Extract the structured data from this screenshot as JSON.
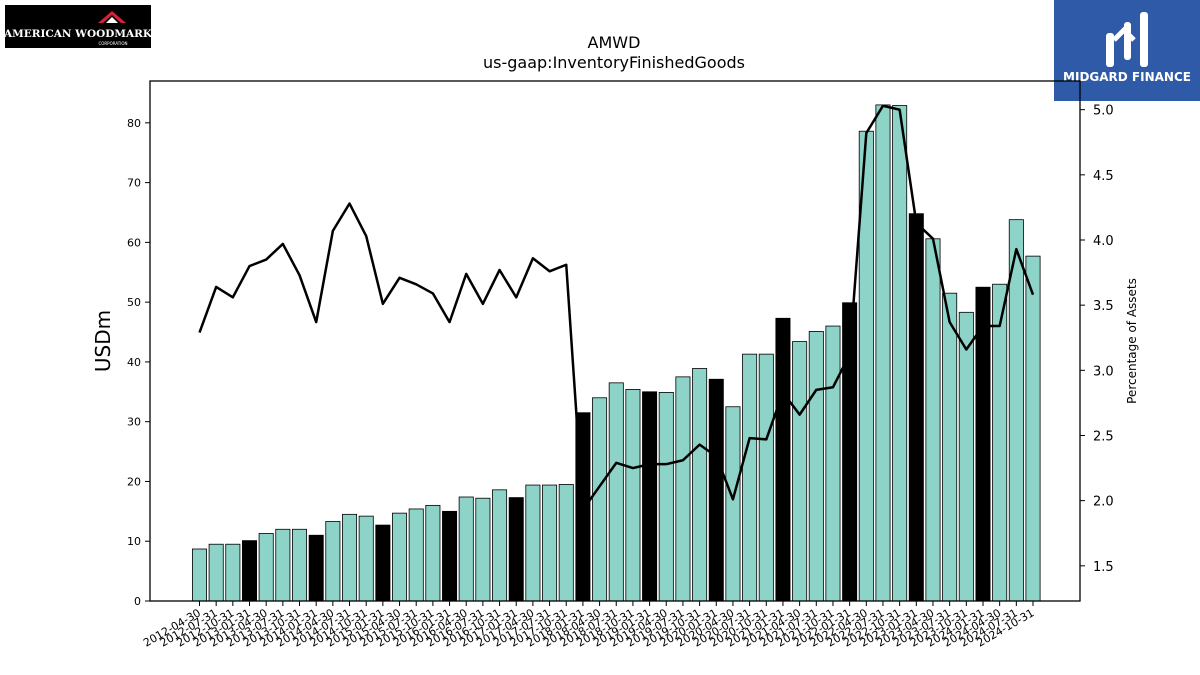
{
  "brand": {
    "left_logo_text": "AMERICAN WOODMARK",
    "left_logo_subtext": "CORPORATION",
    "right_logo_text": "MIDGARD FINANCE",
    "right_logo_color": "#2f5aa8"
  },
  "chart_data": {
    "type": "bar",
    "title": "AMWD",
    "subtitle": "us-gaap:InventoryFinishedGoods",
    "ylabel": "USDm",
    "y2label": "Percentage of Assets",
    "ylim": [
      0,
      87
    ],
    "y2lim": [
      1.23,
      5.22
    ],
    "yticks": [
      0,
      10,
      20,
      30,
      40,
      50,
      60,
      70,
      80
    ],
    "y2ticks": [
      1.5,
      2.0,
      2.5,
      3.0,
      3.5,
      4.0,
      4.5,
      5.0
    ],
    "bar_color": "#8dd3c7",
    "highlight_color": "#000000",
    "line_color": "#000000",
    "categories": [
      "2012-04-30",
      "2012-07-31",
      "2012-10-31",
      "2013-01-31",
      "2013-04-30",
      "2013-07-31",
      "2013-10-31",
      "2014-01-31",
      "2014-04-30",
      "2014-07-31",
      "2014-10-31",
      "2015-01-31",
      "2015-04-30",
      "2015-07-31",
      "2015-10-31",
      "2016-01-31",
      "2016-04-30",
      "2016-07-31",
      "2016-10-31",
      "2017-01-31",
      "2017-04-30",
      "2017-07-31",
      "2017-10-31",
      "2018-01-31",
      "2018-04-30",
      "2018-07-31",
      "2018-10-31",
      "2019-01-31",
      "2019-04-30",
      "2019-07-31",
      "2019-10-31",
      "2020-01-31",
      "2020-04-30",
      "2020-07-31",
      "2020-10-31",
      "2021-01-31",
      "2021-04-30",
      "2021-07-31",
      "2021-10-31",
      "2022-01-31",
      "2022-04-30",
      "2022-07-31",
      "2022-10-31",
      "2023-01-31",
      "2023-04-30",
      "2023-07-31",
      "2023-10-31",
      "2024-01-31",
      "2024-04-30",
      "2024-07-31",
      "2024-10-31"
    ],
    "series": [
      {
        "values": [
          8.7,
          9.5,
          9.5,
          10.1,
          11.3,
          12.0,
          12.0,
          11.0,
          13.3,
          14.5,
          14.2,
          12.7,
          14.7,
          15.4,
          16.0,
          15.0,
          17.4,
          17.2,
          18.6,
          17.3,
          19.4,
          19.4,
          19.5,
          31.5,
          34.0,
          36.5,
          35.4,
          35.0,
          34.9,
          37.5,
          38.9,
          37.1,
          32.5,
          41.3,
          41.3,
          47.3,
          43.4,
          45.1,
          46.0,
          49.9,
          78.6,
          83.0,
          82.9,
          64.8,
          60.6,
          51.5,
          48.3,
          52.5,
          53.0,
          63.8,
          57.7
        ],
        "highlight": [
          false,
          false,
          false,
          true,
          false,
          false,
          false,
          true,
          false,
          false,
          false,
          true,
          false,
          false,
          false,
          true,
          false,
          false,
          false,
          true,
          false,
          false,
          false,
          true,
          false,
          false,
          false,
          true,
          false,
          false,
          false,
          true,
          false,
          false,
          false,
          true,
          false,
          false,
          false,
          true,
          false,
          false,
          false,
          true,
          false,
          false,
          false,
          true,
          false,
          false,
          false
        ]
      },
      {
        "axis": "right",
        "values": [
          3.29,
          3.64,
          3.56,
          3.8,
          3.85,
          3.97,
          3.73,
          3.37,
          4.07,
          4.28,
          4.03,
          3.51,
          3.71,
          3.66,
          3.59,
          3.37,
          3.74,
          3.51,
          3.77,
          3.56,
          3.86,
          3.76,
          3.81,
          1.93,
          2.11,
          2.29,
          2.25,
          2.28,
          2.28,
          2.31,
          2.43,
          2.34,
          2.01,
          2.48,
          2.47,
          2.83,
          2.66,
          2.85,
          2.87,
          3.12,
          4.82,
          5.03,
          5.0,
          4.13,
          4.01,
          3.37,
          3.16,
          3.34,
          3.34,
          3.93,
          3.58
        ]
      }
    ]
  }
}
